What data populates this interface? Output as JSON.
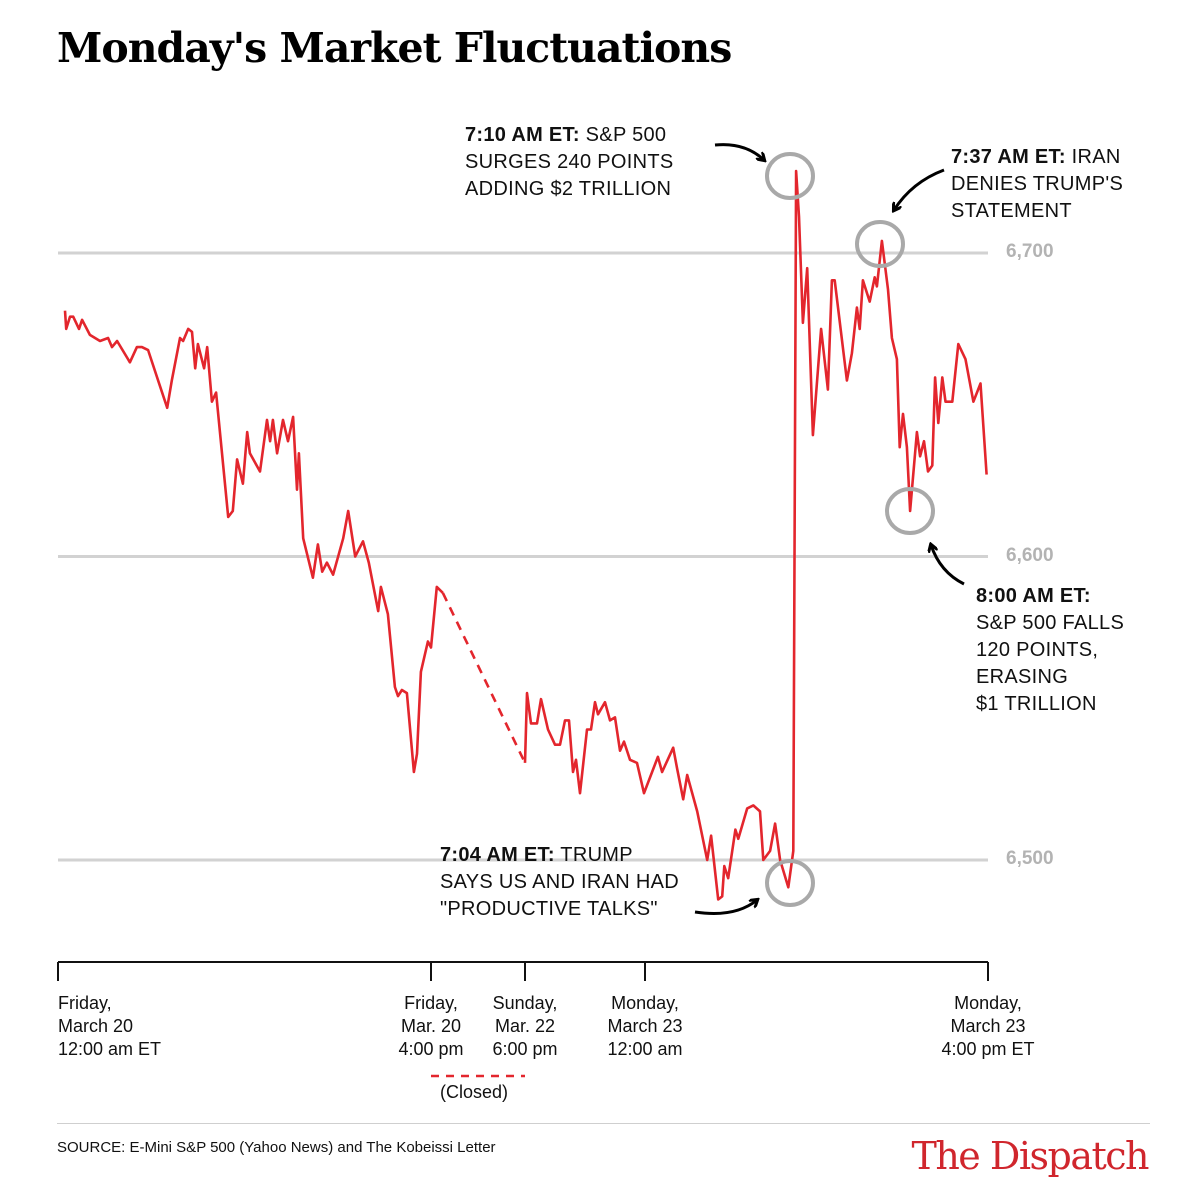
{
  "chart_data": {
    "type": "line",
    "title": "Monday's Market Fluctuations",
    "y_ticks": [
      "6,500",
      "6,600",
      "6,700"
    ],
    "y_tick_values": [
      6500,
      6600,
      6700
    ],
    "ylim": [
      6470,
      6740
    ],
    "grid": "horizontal",
    "x_ticks": [
      {
        "lines": [
          "Friday,",
          "March 20",
          "12:00 am ET"
        ],
        "time": "Fri 00:00"
      },
      {
        "lines": [
          "Friday,",
          "Mar. 20",
          "4:00 pm"
        ],
        "time": "Fri 16:00"
      },
      {
        "lines": [
          "Sunday,",
          "Mar. 22",
          "6:00 pm"
        ],
        "time": "Sun 18:00"
      },
      {
        "lines": [
          "Monday,",
          "March 23",
          "12:00 am"
        ],
        "time": "Mon 00:00"
      },
      {
        "lines": [
          "Monday,",
          "March 23",
          "4:00 pm ET"
        ],
        "time": "Mon 16:00"
      }
    ],
    "closed_label": "(Closed)",
    "line_color": "#e3262d",
    "segments": [
      [
        [
          "Fri 00:18",
          6681
        ],
        [
          "Fri 00:21",
          6675
        ],
        [
          "Fri 00:31",
          6679
        ],
        [
          "Fri 00:39",
          6679
        ],
        [
          "Fri 00:54",
          6675
        ],
        [
          "Fri 01:02",
          6678
        ],
        [
          "Fri 01:22",
          6673
        ],
        [
          "Fri 01:48",
          6671
        ],
        [
          "Fri 02:09",
          6672
        ],
        [
          "Fri 02:19",
          6669
        ],
        [
          "Fri 02:32",
          6671
        ],
        [
          "Fri 03:05",
          6664
        ],
        [
          "Fri 03:23",
          6669
        ],
        [
          "Fri 03:36",
          6669
        ],
        [
          "Fri 03:52",
          6668
        ],
        [
          "Fri 04:15",
          6659
        ],
        [
          "Fri 04:41",
          6649
        ],
        [
          "Fri 04:53",
          6658
        ],
        [
          "Fri 05:14",
          6672
        ],
        [
          "Fri 05:22",
          6671
        ],
        [
          "Fri 05:35",
          6675
        ],
        [
          "Fri 05:45",
          6674
        ],
        [
          "Fri 05:53",
          6662
        ],
        [
          "Fri 06:00",
          6670
        ],
        [
          "Fri 06:16",
          6662
        ],
        [
          "Fri 06:24",
          6669
        ],
        [
          "Fri 06:36",
          6651
        ],
        [
          "Fri 06:47",
          6654
        ],
        [
          "Fri 07:02",
          6634
        ],
        [
          "Fri 07:18",
          6613
        ],
        [
          "Fri 07:30",
          6615
        ],
        [
          "Fri 07:41",
          6632
        ],
        [
          "Fri 07:56",
          6624
        ],
        [
          "Fri 08:07",
          6641
        ],
        [
          "Fri 08:14",
          6634
        ],
        [
          "Fri 08:40",
          6628
        ],
        [
          "Fri 08:58",
          6645
        ],
        [
          "Fri 09:06",
          6638
        ],
        [
          "Fri 09:13",
          6645
        ],
        [
          "Fri 09:24",
          6634
        ],
        [
          "Fri 09:39",
          6645
        ],
        [
          "Fri 09:52",
          6638
        ],
        [
          "Fri 10:05",
          6646
        ],
        [
          "Fri 10:15",
          6622
        ],
        [
          "Fri 10:20",
          6634
        ],
        [
          "Fri 10:31",
          6606
        ],
        [
          "Fri 10:56",
          6593
        ],
        [
          "Fri 11:09",
          6604
        ],
        [
          "Fri 11:20",
          6595
        ],
        [
          "Fri 11:32",
          6598
        ],
        [
          "Fri 11:48",
          6594
        ],
        [
          "Fri 12:14",
          6606
        ],
        [
          "Fri 12:27",
          6615
        ],
        [
          "Fri 12:45",
          6600
        ],
        [
          "Fri 13:05",
          6605
        ],
        [
          "Fri 13:20",
          6598
        ],
        [
          "Fri 13:44",
          6582
        ],
        [
          "Fri 13:51",
          6590
        ],
        [
          "Fri 14:09",
          6581
        ],
        [
          "Fri 14:27",
          6557
        ],
        [
          "Fri 14:35",
          6554
        ],
        [
          "Fri 14:45",
          6556
        ],
        [
          "Fri 14:58",
          6555
        ],
        [
          "Fri 15:16",
          6529
        ],
        [
          "Fri 15:24",
          6535
        ],
        [
          "Fri 15:34",
          6562
        ],
        [
          "Fri 15:52",
          6572
        ],
        [
          "Fri 16:00",
          6570
        ],
        [
          "Fri 16:15",
          6590
        ],
        [
          "Fri 16:31",
          6588
        ]
      ],
      [
        [
          "Sun 18:00",
          6532
        ],
        [
          "Sun 18:06",
          6555
        ],
        [
          "Sun 18:18",
          6545
        ],
        [
          "Sun 18:36",
          6545
        ],
        [
          "Sun 18:48",
          6553
        ],
        [
          "Sun 19:09",
          6543
        ],
        [
          "Sun 19:30",
          6538
        ],
        [
          "Sun 19:45",
          6538
        ],
        [
          "Sun 20:00",
          6546
        ],
        [
          "Sun 20:12",
          6546
        ],
        [
          "Sun 20:24",
          6529
        ],
        [
          "Sun 20:33",
          6533
        ],
        [
          "Sun 20:45",
          6522
        ],
        [
          "Sun 21:06",
          6543
        ],
        [
          "Sun 21:18",
          6543
        ],
        [
          "Sun 21:30",
          6552
        ],
        [
          "Sun 21:39",
          6548
        ],
        [
          "Sun 22:00",
          6552
        ],
        [
          "Sun 22:15",
          6546
        ],
        [
          "Sun 22:30",
          6547
        ],
        [
          "Sun 22:45",
          6536
        ],
        [
          "Sun 22:57",
          6539
        ],
        [
          "Sun 23:15",
          6533
        ],
        [
          "Sun 23:36",
          6532
        ],
        [
          "Sun 23:57",
          6522
        ],
        [
          "Mon 00:20",
          6529
        ],
        [
          "Mon 00:36",
          6534
        ],
        [
          "Mon 00:48",
          6529
        ],
        [
          "Mon 01:19",
          6537
        ],
        [
          "Mon 01:30",
          6530
        ],
        [
          "Mon 01:47",
          6520
        ],
        [
          "Mon 01:58",
          6528
        ],
        [
          "Mon 02:26",
          6516
        ],
        [
          "Mon 02:54",
          6500
        ],
        [
          "Mon 03:05",
          6508
        ],
        [
          "Mon 03:25",
          6487
        ],
        [
          "Mon 03:36",
          6488
        ],
        [
          "Mon 03:42",
          6498
        ],
        [
          "Mon 03:53",
          6494
        ],
        [
          "Mon 04:13",
          6510
        ],
        [
          "Mon 04:21",
          6507
        ],
        [
          "Mon 04:46",
          6517
        ],
        [
          "Mon 05:03",
          6518
        ],
        [
          "Mon 05:22",
          6516
        ],
        [
          "Mon 05:31",
          6500
        ],
        [
          "Mon 05:50",
          6503
        ],
        [
          "Mon 06:04",
          6512
        ],
        [
          "Mon 06:18",
          6500
        ],
        [
          "Mon 06:41",
          6491
        ],
        [
          "Mon 06:55",
          6503
        ],
        [
          "Mon 07:03",
          6727
        ],
        [
          "Mon 07:11",
          6712
        ],
        [
          "Mon 07:22",
          6677
        ],
        [
          "Mon 07:34",
          6695
        ],
        [
          "Mon 07:50",
          6640
        ],
        [
          "Mon 08:13",
          6675
        ],
        [
          "Mon 08:32",
          6655
        ],
        [
          "Mon 08:43",
          6691
        ],
        [
          "Mon 08:51",
          6691
        ],
        [
          "Mon 09:25",
          6658
        ],
        [
          "Mon 09:39",
          6667
        ],
        [
          "Mon 09:53",
          6682
        ],
        [
          "Mon 10:01",
          6675
        ],
        [
          "Mon 10:10",
          6691
        ],
        [
          "Mon 10:29",
          6684
        ],
        [
          "Mon 10:43",
          6692
        ],
        [
          "Mon 10:49",
          6689
        ],
        [
          "Mon 11:03",
          6704
        ],
        [
          "Mon 11:20",
          6688
        ],
        [
          "Mon 11:31",
          6672
        ],
        [
          "Mon 11:45",
          6665
        ],
        [
          "Mon 11:53",
          6636
        ],
        [
          "Mon 12:02",
          6647
        ],
        [
          "Mon 12:13",
          6636
        ],
        [
          "Mon 12:22",
          6615
        ],
        [
          "Mon 12:41",
          6641
        ],
        [
          "Mon 12:50",
          6633
        ],
        [
          "Mon 13:01",
          6638
        ],
        [
          "Mon 13:12",
          6628
        ],
        [
          "Mon 13:24",
          6630
        ],
        [
          "Mon 13:32",
          6659
        ],
        [
          "Mon 13:41",
          6644
        ],
        [
          "Mon 13:52",
          6659
        ],
        [
          "Mon 14:01",
          6651
        ],
        [
          "Mon 14:20",
          6651
        ],
        [
          "Mon 14:37",
          6670
        ],
        [
          "Mon 14:57",
          6665
        ],
        [
          "Mon 15:19",
          6651
        ],
        [
          "Mon 15:39",
          6657
        ],
        [
          "Mon 15:56",
          6627
        ]
      ]
    ],
    "annotations": [
      {
        "bold": "7:10 AM ET:",
        "lines": [
          " S&P 500",
          "SURGES 240 POINTS",
          "ADDING $2 TRILLION"
        ]
      },
      {
        "bold": "7:37 AM ET:",
        "lines": [
          " IRAN",
          "DENIES TRUMP'S",
          "STATEMENT"
        ]
      },
      {
        "bold": "8:00 AM ET:",
        "lines": [
          "",
          "S&P 500 FALLS",
          "120 POINTS,",
          "ERASING",
          "$1 TRILLION"
        ]
      },
      {
        "bold": "7:04 AM ET:",
        "lines": [
          " TRUMP",
          "SAYS US AND IRAN HAD",
          "\"PRODUCTIVE TALKS\""
        ]
      }
    ]
  },
  "footer": {
    "source": "SOURCE: E-Mini S&P 500 (Yahoo News) and The Kobeissi Letter",
    "logo": "The Dispatch"
  }
}
